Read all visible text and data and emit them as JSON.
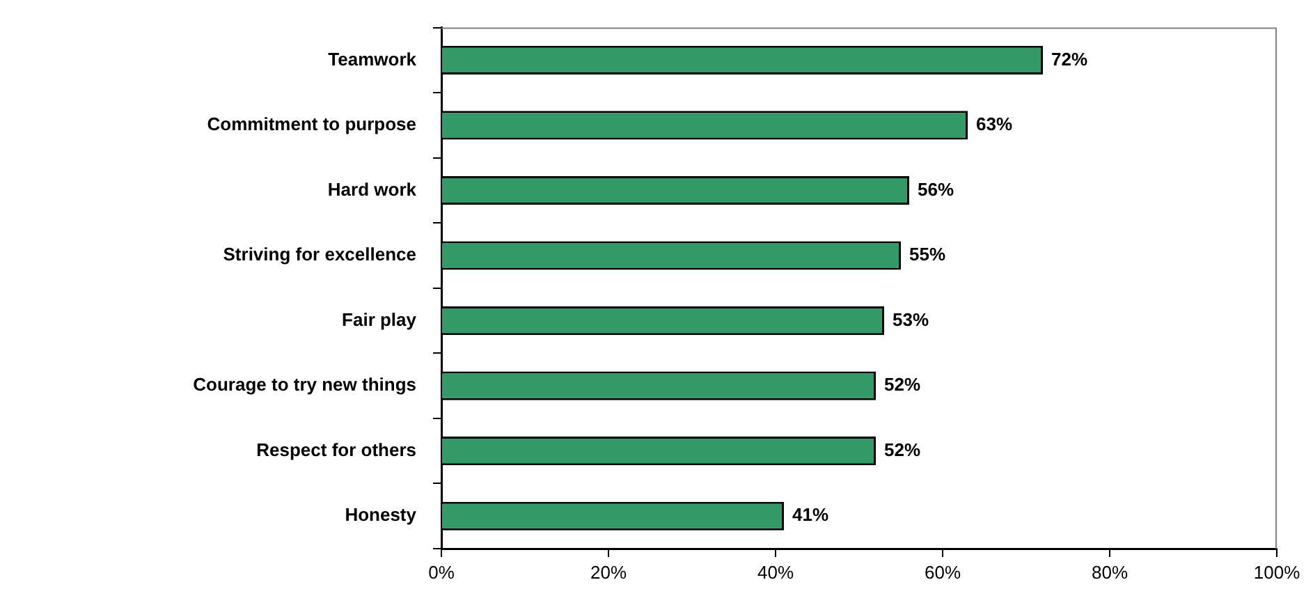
{
  "chart_data": {
    "type": "bar",
    "orientation": "horizontal",
    "categories": [
      "Teamwork",
      "Commitment to purpose",
      "Hard work",
      "Striving for excellence",
      "Fair play",
      "Courage to try new things",
      "Respect for others",
      "Honesty"
    ],
    "values": [
      72,
      63,
      56,
      55,
      53,
      52,
      52,
      41
    ],
    "value_labels": [
      "72%",
      "63%",
      "56%",
      "55%",
      "53%",
      "52%",
      "52%",
      "41%"
    ],
    "color": "#339966",
    "xlim": [
      0,
      100
    ],
    "xticks": [
      {
        "value": 0,
        "label": "0%"
      },
      {
        "value": 20,
        "label": "20%"
      },
      {
        "value": 40,
        "label": "40%"
      },
      {
        "value": 60,
        "label": "60%"
      },
      {
        "value": 80,
        "label": "80%"
      },
      {
        "value": 100,
        "label": "100%"
      }
    ],
    "grid": false,
    "legend": false
  }
}
